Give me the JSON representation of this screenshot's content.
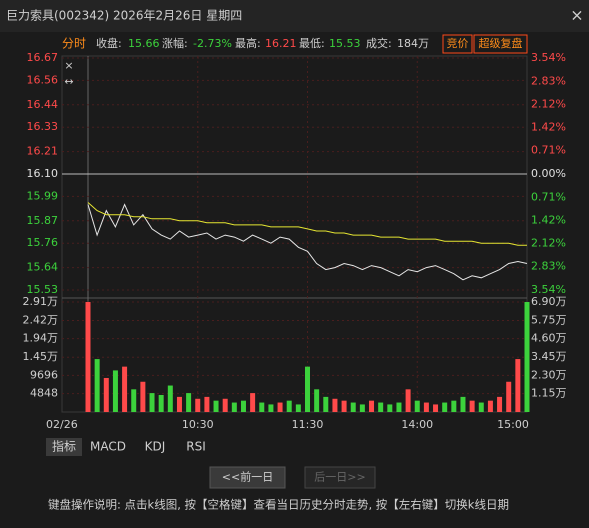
{
  "header": {
    "title": "巨力索具(002342) 2026年2月26日 星期四",
    "close": "×"
  },
  "info": {
    "mode": "分时",
    "close_label": "收盘:",
    "close": "15.66",
    "change_label": "涨幅:",
    "change": "-2.73%",
    "high_label": "最高:",
    "high": "16.21",
    "low_label": "最低:",
    "low": "15.53",
    "volume_label": "成交:",
    "volume": "184万",
    "auction": "竞价",
    "replay": "超级复盘"
  },
  "chart_data": [
    {
      "type": "line",
      "categories": [
        "02/26",
        null,
        null,
        null,
        null,
        null,
        null,
        null,
        null,
        null,
        null,
        null,
        "10:30",
        null,
        null,
        null,
        null,
        null,
        null,
        null,
        null,
        null,
        null,
        null,
        "11:30",
        null,
        null,
        null,
        null,
        null,
        null,
        null,
        null,
        null,
        null,
        null,
        "14:00",
        null,
        null,
        null,
        null,
        null,
        null,
        null,
        null,
        null,
        null,
        null,
        "15:00"
      ],
      "series": [
        {
          "color": "#e6e6e6",
          "values": [
            15.95,
            15.8,
            15.92,
            15.84,
            15.95,
            15.85,
            15.9,
            15.83,
            15.8,
            15.78,
            15.82,
            15.79,
            15.8,
            15.81,
            15.78,
            15.8,
            15.79,
            15.77,
            15.8,
            15.78,
            15.76,
            15.79,
            15.78,
            15.74,
            15.72,
            15.66,
            15.63,
            15.64,
            15.66,
            15.65,
            15.63,
            15.65,
            15.64,
            15.62,
            15.6,
            15.63,
            15.62,
            15.64,
            15.65,
            15.63,
            15.61,
            15.58,
            15.6,
            15.59,
            15.61,
            15.63,
            15.66,
            15.67,
            15.66
          ]
        },
        {
          "color": "#e6e632",
          "values": [
            15.96,
            15.92,
            15.9,
            15.9,
            15.9,
            15.89,
            15.89,
            15.88,
            15.88,
            15.88,
            15.87,
            15.87,
            15.87,
            15.86,
            15.86,
            15.86,
            15.85,
            15.85,
            15.85,
            15.85,
            15.84,
            15.84,
            15.84,
            15.84,
            15.83,
            15.82,
            15.82,
            15.81,
            15.81,
            15.8,
            15.8,
            15.8,
            15.79,
            15.79,
            15.79,
            15.78,
            15.78,
            15.78,
            15.78,
            15.77,
            15.77,
            15.77,
            15.77,
            15.76,
            15.76,
            15.76,
            15.76,
            15.75,
            15.75
          ]
        }
      ],
      "ylim": [
        15.53,
        16.67
      ],
      "yticks": [
        {
          "value": 16.67,
          "label": "16.67"
        },
        {
          "value": 16.56,
          "label": "16.56"
        },
        {
          "value": 16.44,
          "label": "16.44"
        },
        {
          "value": 16.33,
          "label": "16.33"
        },
        {
          "value": 16.21,
          "label": "16.21"
        },
        {
          "value": 16.1,
          "label": "16.10"
        },
        {
          "value": 15.99,
          "label": "15.99"
        },
        {
          "value": 15.87,
          "label": "15.87"
        },
        {
          "value": 15.76,
          "label": "15.76"
        },
        {
          "value": 15.64,
          "label": "15.64"
        },
        {
          "value": 15.53,
          "label": "15.53"
        }
      ],
      "y2lim": [
        -3.54,
        3.54
      ],
      "y2ticks": [
        {
          "value": 3.54,
          "label": "3.54%"
        },
        {
          "value": 2.83,
          "label": "2.83%"
        },
        {
          "value": 2.12,
          "label": "2.12%"
        },
        {
          "value": 1.42,
          "label": "1.42%"
        },
        {
          "value": 0.71,
          "label": "0.71%"
        },
        {
          "value": 0,
          "label": "0.00%"
        },
        {
          "value": -0.71,
          "label": "0.71%"
        },
        {
          "value": -1.42,
          "label": "1.42%"
        },
        {
          "value": -2.12,
          "label": "2.12%"
        },
        {
          "value": -2.83,
          "label": "2.83%"
        },
        {
          "value": -3.54,
          "label": "3.54%"
        }
      ],
      "grid": true
    },
    {
      "type": "bar",
      "values": [
        29100,
        14000,
        9000,
        11000,
        12000,
        6000,
        8000,
        5000,
        4500,
        7000,
        4000,
        5000,
        3500,
        4000,
        3000,
        3500,
        2500,
        3000,
        5000,
        2500,
        2000,
        2500,
        3000,
        2000,
        12000,
        6000,
        4000,
        3500,
        3000,
        2500,
        2000,
        3000,
        2500,
        2000,
        2500,
        6000,
        3000,
        2500,
        2000,
        2500,
        3000,
        4000,
        3000,
        2500,
        3000,
        4000,
        8000,
        14000,
        29100
      ],
      "ylim": [
        0,
        29100
      ],
      "yticks": [
        {
          "value": 29100,
          "label": "2.91万"
        },
        {
          "value": 24200,
          "label": "2.42万"
        },
        {
          "value": 19400,
          "label": "1.94万"
        },
        {
          "value": 14500,
          "label": "1.45万"
        },
        9696,
        4848
      ],
      "y2lim": [
        0,
        69000
      ],
      "y2ticks": [
        {
          "value": 69000,
          "label": "6.90万"
        },
        {
          "value": 57500,
          "label": "5.75万"
        },
        {
          "value": 46000,
          "label": "4.60万"
        },
        {
          "value": 34500,
          "label": "3.45万"
        },
        {
          "value": 23000,
          "label": "2.30万"
        },
        {
          "value": 11500,
          "label": "1.15万"
        }
      ],
      "grid": true
    }
  ],
  "tabs": [
    "指标",
    "MACD",
    "KDJ",
    "RSI"
  ],
  "buttons": {
    "prev": "<<前一日",
    "next": "后一日>>"
  },
  "footer": "键盘操作说明: 点击k线图, 按【空格键】查看当日历史分时走势, 按【左右键】切换k线日期"
}
